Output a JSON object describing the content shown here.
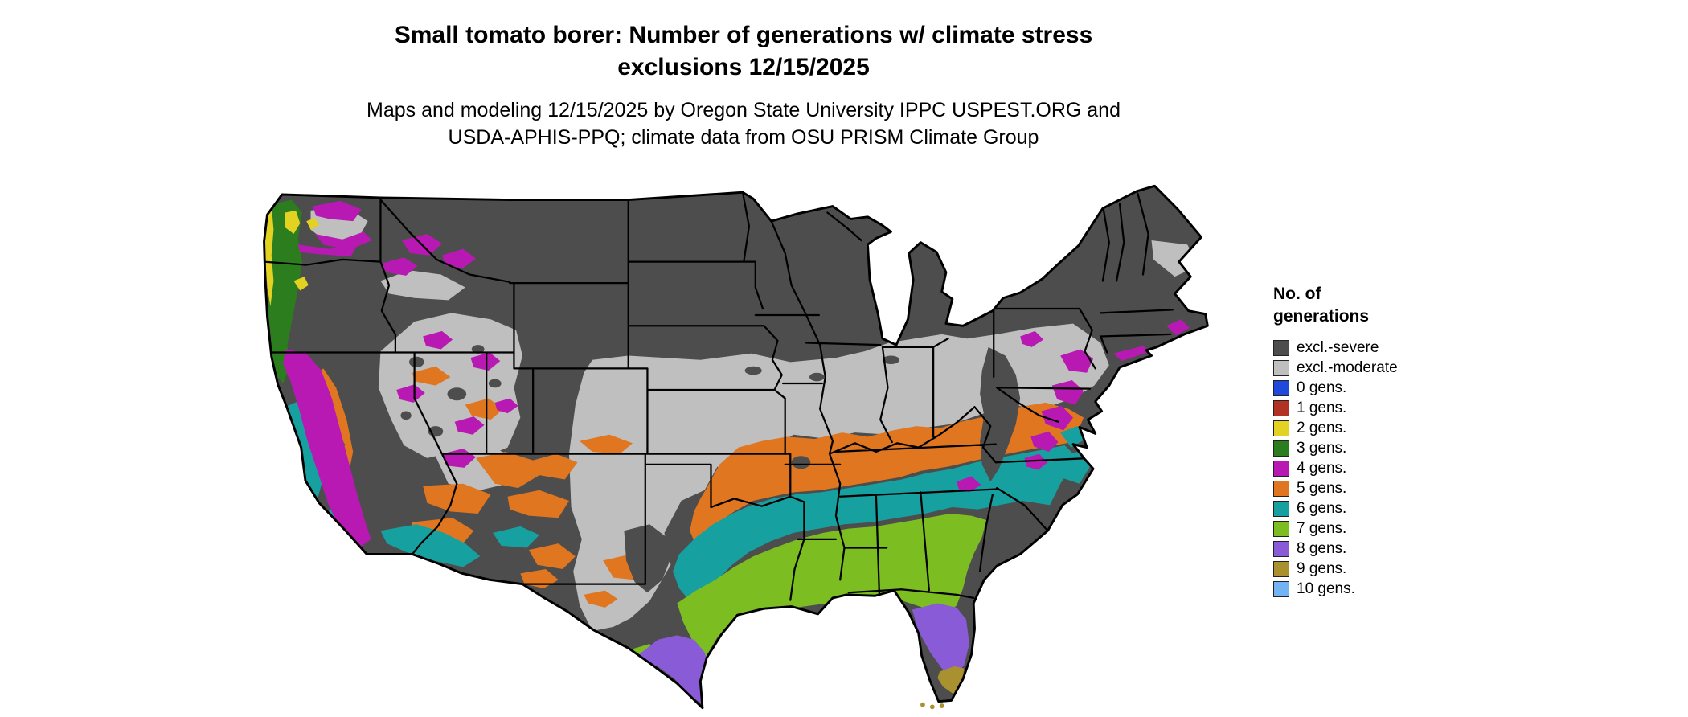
{
  "title": {
    "line1": "Small tomato borer: Number of generations w/ climate stress",
    "line2": "exclusions 12/15/2025"
  },
  "subtitle": {
    "line1": "Maps and modeling 12/15/2025 by Oregon State University IPPC USPEST.ORG and",
    "line2": "USDA-APHIS-PPQ; climate data from OSU PRISM Climate Group"
  },
  "legend": {
    "title_line1": "No. of",
    "title_line2": "generations",
    "items": [
      {
        "label": "excl.-severe",
        "color": "#4d4d4d"
      },
      {
        "label": "excl.-moderate",
        "color": "#bfbfbf"
      },
      {
        "label": "0 gens.",
        "color": "#2148dc"
      },
      {
        "label": "1 gens.",
        "color": "#b23323"
      },
      {
        "label": "2 gens.",
        "color": "#e3d222"
      },
      {
        "label": "3 gens.",
        "color": "#2c7d1e"
      },
      {
        "label": "4 gens.",
        "color": "#b919b3"
      },
      {
        "label": "5 gens.",
        "color": "#e0761f"
      },
      {
        "label": "6 gens.",
        "color": "#16a1a0"
      },
      {
        "label": "7 gens.",
        "color": "#7cbd22"
      },
      {
        "label": "8 gens.",
        "color": "#8a5bd6"
      },
      {
        "label": "9 gens.",
        "color": "#a9912f"
      },
      {
        "label": "10 gens.",
        "color": "#74b3f3"
      }
    ]
  }
}
